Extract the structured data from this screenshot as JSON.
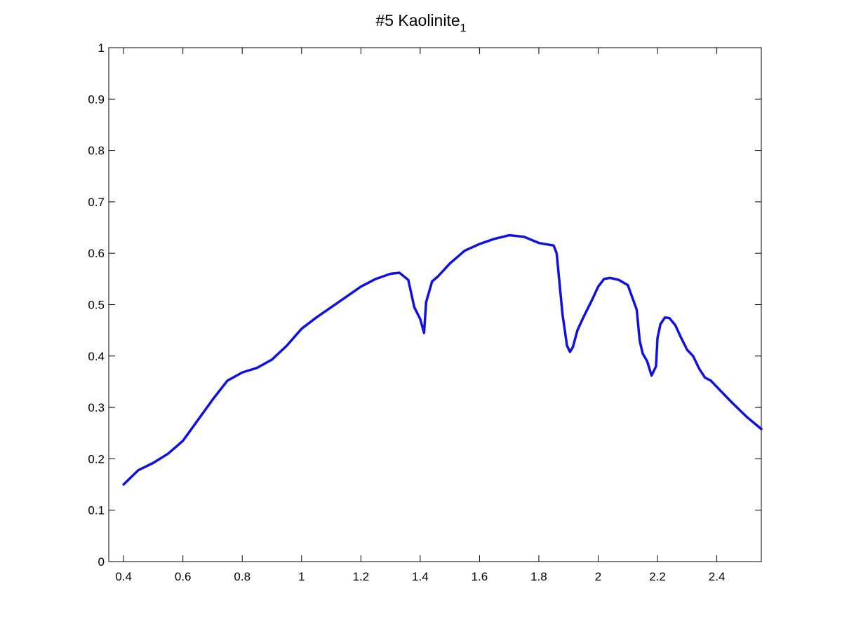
{
  "chart_data": {
    "type": "line",
    "title": {
      "main": "#5 Kaolinite",
      "subscript": "1"
    },
    "xlabel": "",
    "ylabel": "",
    "xlim": [
      0.35,
      2.55
    ],
    "ylim": [
      0,
      1
    ],
    "x_ticks": [
      0.4,
      0.6,
      0.8,
      1,
      1.2,
      1.4,
      1.6,
      1.8,
      2,
      2.2,
      2.4
    ],
    "x_tick_labels": [
      "0.4",
      "0.6",
      "0.8",
      "1",
      "1.2",
      "1.4",
      "1.6",
      "1.8",
      "2",
      "2.2",
      "2.4"
    ],
    "y_ticks": [
      0,
      0.1,
      0.2,
      0.3,
      0.4,
      0.5,
      0.6,
      0.7,
      0.8,
      0.9,
      1
    ],
    "y_tick_labels": [
      "0",
      "0.1",
      "0.2",
      "0.3",
      "0.4",
      "0.5",
      "0.6",
      "0.7",
      "0.8",
      "0.9",
      "1"
    ],
    "grid": false,
    "legend": "none",
    "line_color": "#1010e0",
    "series": [
      {
        "x": [
          0.4,
          0.45,
          0.5,
          0.55,
          0.6,
          0.65,
          0.7,
          0.75,
          0.8,
          0.85,
          0.9,
          0.95,
          1.0,
          1.05,
          1.1,
          1.15,
          1.2,
          1.25,
          1.3,
          1.33,
          1.36,
          1.38,
          1.4,
          1.413,
          1.42,
          1.44,
          1.46,
          1.5,
          1.55,
          1.6,
          1.65,
          1.7,
          1.75,
          1.8,
          1.85,
          1.86,
          1.87,
          1.88,
          1.895,
          1.905,
          1.915,
          1.93,
          1.95,
          1.98,
          2.0,
          2.02,
          2.04,
          2.07,
          2.1,
          2.13,
          2.14,
          2.15,
          2.165,
          2.18,
          2.195,
          2.2,
          2.21,
          2.225,
          2.24,
          2.26,
          2.28,
          2.3,
          2.32,
          2.34,
          2.36,
          2.38,
          2.4,
          2.45,
          2.5,
          2.55
        ],
        "y": [
          0.15,
          0.178,
          0.192,
          0.21,
          0.235,
          0.275,
          0.315,
          0.352,
          0.368,
          0.377,
          0.393,
          0.42,
          0.453,
          0.475,
          0.495,
          0.515,
          0.535,
          0.55,
          0.56,
          0.562,
          0.548,
          0.495,
          0.472,
          0.445,
          0.505,
          0.545,
          0.555,
          0.58,
          0.605,
          0.618,
          0.628,
          0.635,
          0.632,
          0.62,
          0.615,
          0.6,
          0.54,
          0.48,
          0.42,
          0.408,
          0.418,
          0.45,
          0.475,
          0.51,
          0.535,
          0.55,
          0.552,
          0.548,
          0.538,
          0.49,
          0.43,
          0.405,
          0.39,
          0.362,
          0.38,
          0.435,
          0.462,
          0.475,
          0.474,
          0.46,
          0.435,
          0.412,
          0.4,
          0.376,
          0.358,
          0.352,
          0.34,
          0.31,
          0.282,
          0.258
        ]
      }
    ]
  }
}
